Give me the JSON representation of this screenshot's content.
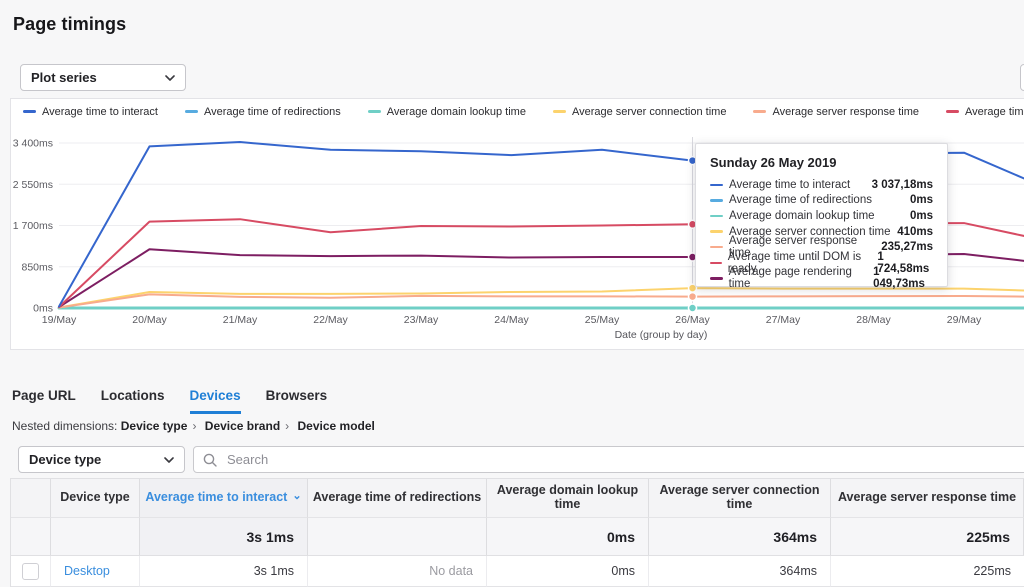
{
  "page": {
    "title": "Page timings"
  },
  "controls": {
    "plot_series_label": "Plot series",
    "dimension_selector_label": "Device type",
    "search_placeholder": "Search"
  },
  "chart_data": {
    "type": "line",
    "title": "",
    "xlabel": "Date (group by day)",
    "ylabel": "",
    "x": [
      "19/May",
      "20/May",
      "21/May",
      "22/May",
      "23/May",
      "24/May",
      "25/May",
      "26/May",
      "27/May",
      "28/May",
      "29/May"
    ],
    "y_ticks": [
      "0ms",
      "850ms",
      "1 700ms",
      "2 550ms",
      "3 400ms"
    ],
    "ylim": [
      0,
      3400
    ],
    "grid": true,
    "legend_position": "top",
    "hover_index": 7,
    "series": [
      {
        "name": "Average time to interact",
        "color": "#3566cd",
        "values": [
          30,
          3330,
          3420,
          3260,
          3230,
          3150,
          3260,
          3037.18,
          3120,
          3180,
          3200
        ],
        "edge": 2400
      },
      {
        "name": "Average time of redirections",
        "color": "#57abe0",
        "values": [
          0,
          0,
          0,
          0,
          0,
          0,
          0,
          0,
          0,
          0,
          0
        ],
        "edge": 0
      },
      {
        "name": "Average domain lookup time",
        "color": "#6fcfc6",
        "values": [
          0,
          0,
          0,
          0,
          0,
          0,
          0,
          0,
          0,
          0,
          0
        ],
        "edge": 0
      },
      {
        "name": "Average server connection time",
        "color": "#fcd36d",
        "values": [
          10,
          330,
          290,
          290,
          300,
          330,
          340,
          410,
          400,
          400,
          400
        ],
        "edge": 340
      },
      {
        "name": "Average server response time",
        "color": "#f8ab8d",
        "values": [
          10,
          280,
          230,
          210,
          250,
          240,
          240,
          235.27,
          240,
          245,
          247
        ],
        "edge": 228
      },
      {
        "name": "Average time until DOM is ready",
        "color": "#d74b63",
        "values": [
          20,
          1780,
          1830,
          1560,
          1690,
          1680,
          1700,
          1724.58,
          1740,
          1745,
          1750
        ],
        "edge": 1350
      },
      {
        "name": "Average page rendering time",
        "color": "#7d1e62",
        "values": [
          20,
          1210,
          1090,
          1070,
          1080,
          1040,
          1050,
          1049.73,
          1070,
          1090,
          1113
        ],
        "edge": 900
      }
    ]
  },
  "tooltip": {
    "title": "Sunday 26 May 2019",
    "rows": [
      {
        "label": "Average time to interact",
        "value": "3 037,18ms",
        "color": "#3566cd"
      },
      {
        "label": "Average time of redirections",
        "value": "0ms",
        "color": "#57abe0"
      },
      {
        "label": "Average domain lookup time",
        "value": "0ms",
        "color": "#6fcfc6"
      },
      {
        "label": "Average server connection time",
        "value": "410ms",
        "color": "#fcd36d"
      },
      {
        "label": "Average server response time",
        "value": "235,27ms",
        "color": "#f8ab8d"
      },
      {
        "label": "Average time until DOM is ready",
        "value": "1 724,58ms",
        "color": "#d74b63"
      },
      {
        "label": "Average page rendering time",
        "value": "1 049,73ms",
        "color": "#7d1e62"
      }
    ]
  },
  "tabs": [
    {
      "label": "Page URL",
      "active": false
    },
    {
      "label": "Locations",
      "active": false
    },
    {
      "label": "Devices",
      "active": true
    },
    {
      "label": "Browsers",
      "active": false
    }
  ],
  "nested_dimensions": {
    "prefix": "Nested dimensions:",
    "path": [
      "Device type",
      "Device brand",
      "Device model"
    ],
    "separator": "›"
  },
  "table": {
    "columns": [
      "",
      "Device type",
      "Average time to interact",
      "Average time of redirections",
      "Average domain lookup time",
      "Average server connection time",
      "Average server response time"
    ],
    "sort": {
      "column_index": 2,
      "direction": "desc"
    },
    "totals_row": [
      "",
      "",
      "3s 1ms",
      "",
      "0ms",
      "364ms",
      "225ms"
    ],
    "rows": [
      [
        "",
        "Desktop",
        "3s 1ms",
        "No data",
        "0ms",
        "364ms",
        "225ms"
      ]
    ]
  },
  "colors": {
    "accent_blue": "#1f7fd6",
    "link_blue": "#3a8ede",
    "page_bg": "#f7f7f8",
    "grid_line": "#ededf0"
  }
}
